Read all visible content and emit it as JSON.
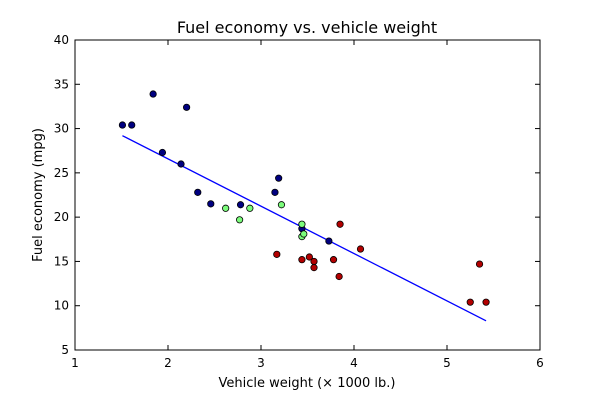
{
  "chart_data": {
    "type": "scatter",
    "title": "Fuel economy vs. vehicle weight",
    "xlabel": "Vehicle weight (× 1000 lb.)",
    "ylabel": "Fuel economy (mpg)",
    "xlim": [
      1,
      6
    ],
    "ylim": [
      5,
      40
    ],
    "xticks": [
      1,
      2,
      3,
      4,
      5,
      6
    ],
    "yticks": [
      5,
      10,
      15,
      20,
      25,
      30,
      35,
      40
    ],
    "grid": false,
    "colors": {
      "navy": "#000080",
      "green": "#7cfc7c",
      "red": "#b30000",
      "line": "#0000ff",
      "edge": "#000000"
    },
    "series": [
      {
        "color": "navy",
        "points": [
          [
            1.51,
            30.4
          ],
          [
            1.61,
            30.4
          ],
          [
            1.84,
            33.9
          ],
          [
            1.94,
            27.3
          ],
          [
            2.14,
            26.0
          ],
          [
            2.2,
            32.4
          ],
          [
            2.32,
            22.8
          ],
          [
            2.46,
            21.5
          ],
          [
            2.78,
            21.4
          ],
          [
            3.15,
            22.8
          ],
          [
            3.19,
            24.4
          ],
          [
            3.44,
            18.7
          ],
          [
            3.73,
            17.3
          ]
        ]
      },
      {
        "color": "green",
        "points": [
          [
            2.62,
            21.0
          ],
          [
            2.77,
            19.7
          ],
          [
            2.88,
            21.0
          ],
          [
            3.22,
            21.4
          ],
          [
            3.44,
            19.2
          ],
          [
            3.44,
            17.8
          ],
          [
            3.46,
            18.1
          ]
        ]
      },
      {
        "color": "red",
        "points": [
          [
            3.17,
            15.8
          ],
          [
            3.44,
            15.2
          ],
          [
            3.52,
            15.5
          ],
          [
            3.57,
            15.0
          ],
          [
            3.57,
            14.3
          ],
          [
            3.78,
            15.2
          ],
          [
            3.84,
            13.3
          ],
          [
            3.85,
            19.2
          ],
          [
            4.07,
            16.4
          ],
          [
            5.25,
            10.4
          ],
          [
            5.35,
            14.7
          ],
          [
            5.42,
            10.4
          ]
        ]
      }
    ],
    "fit_line": {
      "x": [
        1.51,
        5.42
      ],
      "y": [
        29.2,
        8.3
      ],
      "color": "line"
    }
  }
}
